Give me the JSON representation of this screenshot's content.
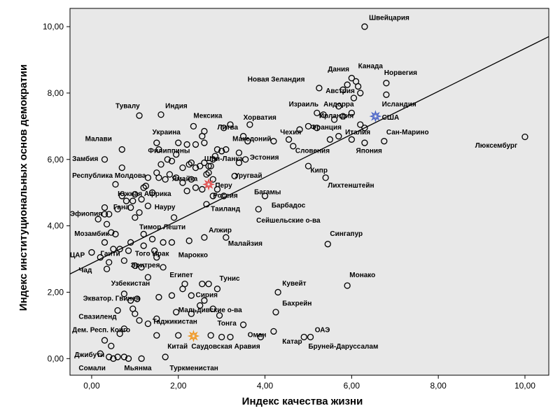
{
  "chart_data": {
    "type": "scatter",
    "title": "",
    "xlabel": "Индекс качества жизни",
    "ylabel": "Индекс институциональных основ демократии",
    "xlim": [
      -0.5,
      10.55
    ],
    "ylim": [
      -0.5,
      10.55
    ],
    "xticks": [
      "0,00",
      "2,00",
      "4,00",
      "6,00",
      "8,00",
      "10,00"
    ],
    "yticks": [
      "0,00",
      "2,00",
      "4,00",
      "6,00",
      "8,00",
      "10,00"
    ],
    "grid": false,
    "background_color": "#e8e8e8",
    "trend_line": {
      "x0": -0.5,
      "y0": 2.55,
      "x1": 10.55,
      "y1": 9.7
    },
    "highlighted_points": [
      {
        "name": "США",
        "x": 6.55,
        "y": 7.3,
        "color": "#4a64c8",
        "marker": "star"
      },
      {
        "name": "Россия",
        "x": 2.7,
        "y": 5.25,
        "color": "#e04848",
        "marker": "star"
      },
      {
        "name": "Китай",
        "x": 2.35,
        "y": 0.68,
        "color": "#f0961e",
        "marker": "star"
      }
    ],
    "points": [
      {
        "x": 6.3,
        "y": 10.0
      },
      {
        "x": 10.0,
        "y": 6.68
      },
      {
        "x": 6.8,
        "y": 8.3
      },
      {
        "x": 6.8,
        "y": 7.95
      },
      {
        "x": 6.1,
        "y": 8.35
      },
      {
        "x": 6.0,
        "y": 8.45
      },
      {
        "x": 6.15,
        "y": 8.2
      },
      {
        "x": 6.2,
        "y": 8.0
      },
      {
        "x": 5.9,
        "y": 8.25
      },
      {
        "x": 5.8,
        "y": 8.1
      },
      {
        "x": 6.05,
        "y": 7.85
      },
      {
        "x": 5.7,
        "y": 7.6
      },
      {
        "x": 6.0,
        "y": 7.4
      },
      {
        "x": 5.25,
        "y": 8.15
      },
      {
        "x": 5.2,
        "y": 7.4
      },
      {
        "x": 5.35,
        "y": 7.35
      },
      {
        "x": 5.8,
        "y": 7.3
      },
      {
        "x": 5.6,
        "y": 7.2
      },
      {
        "x": 6.2,
        "y": 7.05
      },
      {
        "x": 6.3,
        "y": 6.95
      },
      {
        "x": 5.2,
        "y": 6.95
      },
      {
        "x": 5.0,
        "y": 7.0
      },
      {
        "x": 4.8,
        "y": 6.9
      },
      {
        "x": 5.7,
        "y": 6.7
      },
      {
        "x": 5.5,
        "y": 6.6
      },
      {
        "x": 6.75,
        "y": 6.55
      },
      {
        "x": 6.3,
        "y": 6.5
      },
      {
        "x": 6.0,
        "y": 6.6
      },
      {
        "x": 4.55,
        "y": 6.6
      },
      {
        "x": 4.65,
        "y": 6.4
      },
      {
        "x": 4.2,
        "y": 6.55
      },
      {
        "x": 5.0,
        "y": 5.8
      },
      {
        "x": 5.4,
        "y": 5.45
      },
      {
        "x": 4.0,
        "y": 4.9
      },
      {
        "x": 3.85,
        "y": 4.5
      },
      {
        "x": 5.45,
        "y": 3.45
      },
      {
        "x": 5.9,
        "y": 2.2
      },
      {
        "x": 4.3,
        "y": 2.0
      },
      {
        "x": 4.25,
        "y": 1.4
      },
      {
        "x": 4.2,
        "y": 0.82
      },
      {
        "x": 4.9,
        "y": 0.65
      },
      {
        "x": 5.05,
        "y": 0.65
      },
      {
        "x": 3.5,
        "y": 1.02
      },
      {
        "x": 3.2,
        "y": 0.65
      },
      {
        "x": 3.9,
        "y": 0.65
      },
      {
        "x": 3.5,
        "y": 6.7
      },
      {
        "x": 3.6,
        "y": 6.55
      },
      {
        "x": 3.4,
        "y": 6.2
      },
      {
        "x": 3.55,
        "y": 6.0
      },
      {
        "x": 3.4,
        "y": 5.9
      },
      {
        "x": 3.3,
        "y": 5.5
      },
      {
        "x": 3.65,
        "y": 7.05
      },
      {
        "x": 3.2,
        "y": 7.05
      },
      {
        "x": 3.05,
        "y": 6.95
      },
      {
        "x": 3.1,
        "y": 6.3
      },
      {
        "x": 3.0,
        "y": 6.25
      },
      {
        "x": 2.9,
        "y": 6.3
      },
      {
        "x": 2.85,
        "y": 6.1
      },
      {
        "x": 2.8,
        "y": 6.0
      },
      {
        "x": 2.7,
        "y": 5.8
      },
      {
        "x": 2.65,
        "y": 5.55
      },
      {
        "x": 2.6,
        "y": 6.5
      },
      {
        "x": 2.6,
        "y": 6.85
      },
      {
        "x": 2.4,
        "y": 6.45
      },
      {
        "x": 2.2,
        "y": 6.45
      },
      {
        "x": 2.0,
        "y": 6.5
      },
      {
        "x": 1.95,
        "y": 6.15
      },
      {
        "x": 1.85,
        "y": 5.95
      },
      {
        "x": 1.75,
        "y": 6.0
      },
      {
        "x": 1.5,
        "y": 6.5
      },
      {
        "x": 1.55,
        "y": 6.3
      },
      {
        "x": 1.6,
        "y": 5.85
      },
      {
        "x": 2.1,
        "y": 5.75
      },
      {
        "x": 2.25,
        "y": 5.85
      },
      {
        "x": 2.3,
        "y": 5.9
      },
      {
        "x": 2.4,
        "y": 5.75
      },
      {
        "x": 2.5,
        "y": 5.8
      },
      {
        "x": 2.6,
        "y": 5.9
      },
      {
        "x": 2.75,
        "y": 5.8
      },
      {
        "x": 2.7,
        "y": 5.6
      },
      {
        "x": 2.8,
        "y": 5.4
      },
      {
        "x": 2.9,
        "y": 5.1
      },
      {
        "x": 2.8,
        "y": 4.9
      },
      {
        "x": 3.05,
        "y": 4.9
      },
      {
        "x": 2.65,
        "y": 4.65
      },
      {
        "x": 2.55,
        "y": 5.1
      },
      {
        "x": 2.4,
        "y": 5.15
      },
      {
        "x": 2.1,
        "y": 5.3
      },
      {
        "x": 2.2,
        "y": 5.05
      },
      {
        "x": 2.3,
        "y": 5.4
      },
      {
        "x": 1.95,
        "y": 5.45
      },
      {
        "x": 1.8,
        "y": 5.55
      },
      {
        "x": 1.7,
        "y": 5.4
      },
      {
        "x": 1.55,
        "y": 5.45
      },
      {
        "x": 1.5,
        "y": 5.6
      },
      {
        "x": 1.3,
        "y": 5.45
      },
      {
        "x": 1.25,
        "y": 5.2
      },
      {
        "x": 1.4,
        "y": 5.0
      },
      {
        "x": 1.15,
        "y": 4.8
      },
      {
        "x": 1.0,
        "y": 4.95
      },
      {
        "x": 1.3,
        "y": 4.6
      },
      {
        "x": 1.1,
        "y": 4.4
      },
      {
        "x": 1.0,
        "y": 4.25
      },
      {
        "x": 0.9,
        "y": 4.55
      },
      {
        "x": 0.95,
        "y": 4.75
      },
      {
        "x": 0.8,
        "y": 4.75
      },
      {
        "x": 0.7,
        "y": 4.9
      },
      {
        "x": 0.55,
        "y": 5.25
      },
      {
        "x": 0.6,
        "y": 4.5
      },
      {
        "x": 0.4,
        "y": 4.35
      },
      {
        "x": 0.3,
        "y": 4.55
      },
      {
        "x": 0.3,
        "y": 4.35
      },
      {
        "x": 0.15,
        "y": 4.2
      },
      {
        "x": 0.35,
        "y": 4.05
      },
      {
        "x": 0.45,
        "y": 3.8
      },
      {
        "x": 0.55,
        "y": 3.75
      },
      {
        "x": 0.3,
        "y": 3.5
      },
      {
        "x": 0.5,
        "y": 3.3
      },
      {
        "x": 0.2,
        "y": 3.05
      },
      {
        "x": 0.4,
        "y": 2.9
      },
      {
        "x": 0.35,
        "y": 2.7
      },
      {
        "x": 0.0,
        "y": 3.2
      },
      {
        "x": 0.65,
        "y": 3.3
      },
      {
        "x": 0.85,
        "y": 3.25
      },
      {
        "x": 0.75,
        "y": 2.95
      },
      {
        "x": 1.0,
        "y": 2.8
      },
      {
        "x": 1.15,
        "y": 2.75
      },
      {
        "x": 0.9,
        "y": 3.5
      },
      {
        "x": 1.2,
        "y": 3.4
      },
      {
        "x": 1.4,
        "y": 3.6
      },
      {
        "x": 1.2,
        "y": 3.75
      },
      {
        "x": 1.45,
        "y": 3.25
      },
      {
        "x": 1.65,
        "y": 3.5
      },
      {
        "x": 1.85,
        "y": 3.5
      },
      {
        "x": 2.25,
        "y": 3.55
      },
      {
        "x": 1.5,
        "y": 3.05
      },
      {
        "x": 1.65,
        "y": 2.75
      },
      {
        "x": 1.3,
        "y": 2.45
      },
      {
        "x": 0.75,
        "y": 1.95
      },
      {
        "x": 0.9,
        "y": 1.75
      },
      {
        "x": 1.05,
        "y": 1.8
      },
      {
        "x": 0.95,
        "y": 1.5
      },
      {
        "x": 0.6,
        "y": 1.45
      },
      {
        "x": 1.0,
        "y": 1.35
      },
      {
        "x": 1.1,
        "y": 1.15
      },
      {
        "x": 0.75,
        "y": 0.9
      },
      {
        "x": 0.65,
        "y": 0.75
      },
      {
        "x": 1.3,
        "y": 1.05
      },
      {
        "x": 1.55,
        "y": 1.85
      },
      {
        "x": 1.85,
        "y": 1.9
      },
      {
        "x": 2.1,
        "y": 2.1
      },
      {
        "x": 2.15,
        "y": 2.25
      },
      {
        "x": 2.3,
        "y": 1.9
      },
      {
        "x": 2.5,
        "y": 1.6
      },
      {
        "x": 2.55,
        "y": 2.25
      },
      {
        "x": 2.7,
        "y": 2.25
      },
      {
        "x": 2.9,
        "y": 2.1
      },
      {
        "x": 2.6,
        "y": 1.75
      },
      {
        "x": 2.8,
        "y": 1.5
      },
      {
        "x": 2.95,
        "y": 1.3
      },
      {
        "x": 2.3,
        "y": 1.35
      },
      {
        "x": 1.95,
        "y": 1.4
      },
      {
        "x": 1.5,
        "y": 1.2
      },
      {
        "x": 1.5,
        "y": 0.7
      },
      {
        "x": 2.0,
        "y": 0.7
      },
      {
        "x": 2.75,
        "y": 0.7
      },
      {
        "x": 3.0,
        "y": 0.65
      },
      {
        "x": 0.3,
        "y": 0.55
      },
      {
        "x": 0.45,
        "y": 0.38
      },
      {
        "x": 0.2,
        "y": 0.15
      },
      {
        "x": 0.5,
        "y": 0.0
      },
      {
        "x": 0.6,
        "y": 0.05
      },
      {
        "x": 0.75,
        "y": 0.05
      },
      {
        "x": 0.85,
        "y": 0.0
      },
      {
        "x": 0.4,
        "y": 0.05
      },
      {
        "x": 1.15,
        "y": 0.0
      },
      {
        "x": 1.7,
        "y": 0.05
      },
      {
        "x": 0.7,
        "y": 6.3
      },
      {
        "x": 0.3,
        "y": 6.0
      },
      {
        "x": 0.7,
        "y": 5.75
      },
      {
        "x": 1.1,
        "y": 7.32
      },
      {
        "x": 1.6,
        "y": 7.35
      },
      {
        "x": 2.35,
        "y": 7.0
      },
      {
        "x": 2.55,
        "y": 6.7
      },
      {
        "x": 1.2,
        "y": 5.15
      },
      {
        "x": 1.9,
        "y": 4.25
      },
      {
        "x": 2.6,
        "y": 3.65
      },
      {
        "x": 3.1,
        "y": 3.65
      }
    ],
    "labels": [
      {
        "text": "Швейцария",
        "x": 6.4,
        "y": 10.2
      },
      {
        "text": "Люксембург",
        "x": 8.85,
        "y": 6.35
      },
      {
        "text": "Канада",
        "x": 6.15,
        "y": 8.75
      },
      {
        "text": "Дания",
        "x": 5.45,
        "y": 8.65
      },
      {
        "text": "Норвегия",
        "x": 6.75,
        "y": 8.55
      },
      {
        "text": "Новая Зеландия",
        "x": 3.6,
        "y": 8.35
      },
      {
        "text": "Австрия",
        "x": 5.4,
        "y": 8.0
      },
      {
        "text": "Андорра",
        "x": 5.35,
        "y": 7.6
      },
      {
        "text": "Исландия",
        "x": 6.7,
        "y": 7.6
      },
      {
        "text": "Израиль",
        "x": 4.55,
        "y": 7.6
      },
      {
        "text": "Ирландия",
        "x": 5.25,
        "y": 7.25
      },
      {
        "text": "США",
        "x": 6.7,
        "y": 7.2
      },
      {
        "text": "Тувалу",
        "x": 0.55,
        "y": 7.55
      },
      {
        "text": "Индия",
        "x": 1.7,
        "y": 7.55
      },
      {
        "text": "Мексика",
        "x": 2.35,
        "y": 7.25
      },
      {
        "text": "Хорватия",
        "x": 3.5,
        "y": 7.2
      },
      {
        "text": "Литва",
        "x": 2.9,
        "y": 6.9
      },
      {
        "text": "Франция",
        "x": 5.05,
        "y": 6.9
      },
      {
        "text": "Чехия",
        "x": 4.35,
        "y": 6.75
      },
      {
        "text": "Италия",
        "x": 5.85,
        "y": 6.75
      },
      {
        "text": "Сан-Марино",
        "x": 6.8,
        "y": 6.75
      },
      {
        "text": "Украина",
        "x": 1.4,
        "y": 6.75
      },
      {
        "text": "Малави",
        "x": -0.15,
        "y": 6.55
      },
      {
        "text": "Македоний",
        "x": 3.25,
        "y": 6.55
      },
      {
        "text": "Филиппины",
        "x": 1.3,
        "y": 6.2
      },
      {
        "text": "Эстония",
        "x": 3.65,
        "y": 6.0
      },
      {
        "text": "Словения",
        "x": 4.7,
        "y": 6.2
      },
      {
        "text": "Япония",
        "x": 6.1,
        "y": 6.2
      },
      {
        "text": "Замбия",
        "x": -0.45,
        "y": 5.95
      },
      {
        "text": "Шри-Ланка",
        "x": 2.6,
        "y": 5.95
      },
      {
        "text": "Республика Молдова",
        "x": -0.45,
        "y": 5.45
      },
      {
        "text": "Ямайка",
        "x": 1.85,
        "y": 5.35
      },
      {
        "text": "Уругвай",
        "x": 3.3,
        "y": 5.45
      },
      {
        "text": "Кипр",
        "x": 5.05,
        "y": 5.6
      },
      {
        "text": "Перу",
        "x": 2.85,
        "y": 5.15
      },
      {
        "text": "Лихтенштейн",
        "x": 5.45,
        "y": 5.15
      },
      {
        "text": "Багамы",
        "x": 3.75,
        "y": 4.95
      },
      {
        "text": "Южная Африка",
        "x": 0.6,
        "y": 4.9
      },
      {
        "text": "Россия",
        "x": 2.8,
        "y": 4.85
      },
      {
        "text": "Барбадос",
        "x": 4.15,
        "y": 4.55
      },
      {
        "text": "Эфиопия",
        "x": -0.5,
        "y": 4.3
      },
      {
        "text": "Гана",
        "x": 0.5,
        "y": 4.5
      },
      {
        "text": "Науру",
        "x": 1.45,
        "y": 4.5
      },
      {
        "text": "Таиланд",
        "x": 2.75,
        "y": 4.45
      },
      {
        "text": "Сейшельские о-ва",
        "x": 3.8,
        "y": 4.1
      },
      {
        "text": "Тимор Лешти",
        "x": 1.1,
        "y": 3.9
      },
      {
        "text": "Алжир",
        "x": 2.7,
        "y": 3.8
      },
      {
        "text": "Мозамбик",
        "x": -0.4,
        "y": 3.7
      },
      {
        "text": "Сингапур",
        "x": 5.5,
        "y": 3.7
      },
      {
        "text": "Малайзия",
        "x": 3.15,
        "y": 3.4
      },
      {
        "text": "ЦАР",
        "x": -0.5,
        "y": 3.05
      },
      {
        "text": "Гаити",
        "x": 0.2,
        "y": 3.1
      },
      {
        "text": "Того",
        "x": 1.0,
        "y": 3.1
      },
      {
        "text": "Ирак",
        "x": 1.4,
        "y": 3.1
      },
      {
        "text": "Марокко",
        "x": 2.0,
        "y": 3.05
      },
      {
        "text": "Эритрея",
        "x": 0.9,
        "y": 2.75
      },
      {
        "text": "Чад",
        "x": -0.3,
        "y": 2.6
      },
      {
        "text": "Египет",
        "x": 1.8,
        "y": 2.45
      },
      {
        "text": "Тунис",
        "x": 2.95,
        "y": 2.35
      },
      {
        "text": "Монако",
        "x": 5.95,
        "y": 2.45
      },
      {
        "text": "Кувейт",
        "x": 4.4,
        "y": 2.2
      },
      {
        "text": "Узбекистан",
        "x": 0.45,
        "y": 2.2
      },
      {
        "text": "Сирия",
        "x": 2.4,
        "y": 1.85
      },
      {
        "text": "Экватор. Гвинея",
        "x": -0.2,
        "y": 1.75
      },
      {
        "text": "Бахрейн",
        "x": 4.4,
        "y": 1.6
      },
      {
        "text": "Мальдивские о-ва",
        "x": 2.0,
        "y": 1.4
      },
      {
        "text": "Свазиленд",
        "x": -0.3,
        "y": 1.2
      },
      {
        "text": "Таджикистан",
        "x": 1.4,
        "y": 1.05
      },
      {
        "text": "Тонга",
        "x": 2.9,
        "y": 1.0
      },
      {
        "text": "ОАЭ",
        "x": 5.15,
        "y": 0.8
      },
      {
        "text": "Дем. Респ. Конго",
        "x": -0.45,
        "y": 0.8
      },
      {
        "text": "Оман",
        "x": 3.6,
        "y": 0.65
      },
      {
        "text": "Катар",
        "x": 4.4,
        "y": 0.45
      },
      {
        "text": "Китай",
        "x": 1.75,
        "y": 0.3
      },
      {
        "text": "Саудовская Аравия",
        "x": 2.3,
        "y": 0.3
      },
      {
        "text": "Бруней-Даруссалам",
        "x": 5.0,
        "y": 0.3
      },
      {
        "text": "Джибути",
        "x": -0.4,
        "y": 0.05
      },
      {
        "text": "Сомали",
        "x": -0.3,
        "y": -0.35
      },
      {
        "text": "Мьянма",
        "x": 0.75,
        "y": -0.35
      },
      {
        "text": "Туркменистан",
        "x": 1.8,
        "y": -0.35
      }
    ]
  }
}
